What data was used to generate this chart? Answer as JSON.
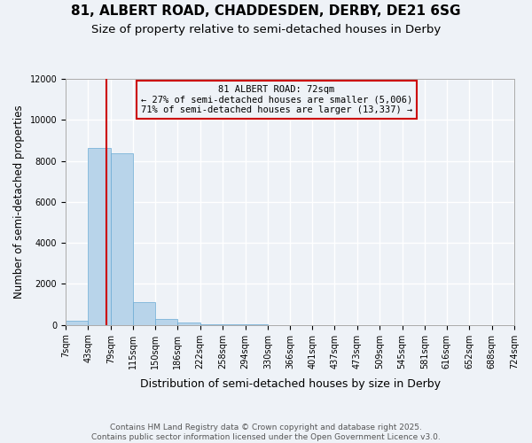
{
  "title_line1": "81, ALBERT ROAD, CHADDESDEN, DERBY, DE21 6SG",
  "title_line2": "Size of property relative to semi-detached houses in Derby",
  "xlabel": "Distribution of semi-detached houses by size in Derby",
  "ylabel": "Number of semi-detached properties",
  "bin_edges": [
    7,
    43,
    79,
    115,
    150,
    186,
    222,
    258,
    294,
    330,
    366,
    401,
    437,
    473,
    509,
    545,
    581,
    616,
    652,
    688,
    724
  ],
  "counts": [
    210,
    8620,
    8380,
    1090,
    290,
    105,
    45,
    18,
    10,
    6,
    3,
    2,
    2,
    1,
    1,
    0,
    0,
    0,
    0,
    0
  ],
  "property_size": 72,
  "bar_color": "#b8d4ea",
  "bar_edge_color": "#6aaad4",
  "line_color": "#cc0000",
  "annotation_text_line1": "81 ALBERT ROAD: 72sqm",
  "annotation_text_line2": "← 27% of semi-detached houses are smaller (5,006)",
  "annotation_text_line3": "71% of semi-detached houses are larger (13,337) →",
  "ylim": [
    0,
    12000
  ],
  "yticks": [
    0,
    2000,
    4000,
    6000,
    8000,
    10000,
    12000
  ],
  "footnote_line1": "Contains HM Land Registry data © Crown copyright and database right 2025.",
  "footnote_line2": "Contains public sector information licensed under the Open Government Licence v3.0.",
  "background_color": "#eef2f7",
  "grid_color": "#ffffff",
  "title_fontsize": 11,
  "subtitle_fontsize": 9.5,
  "tick_fontsize": 7,
  "ylabel_fontsize": 8.5,
  "xlabel_fontsize": 9,
  "footnote_fontsize": 6.5
}
